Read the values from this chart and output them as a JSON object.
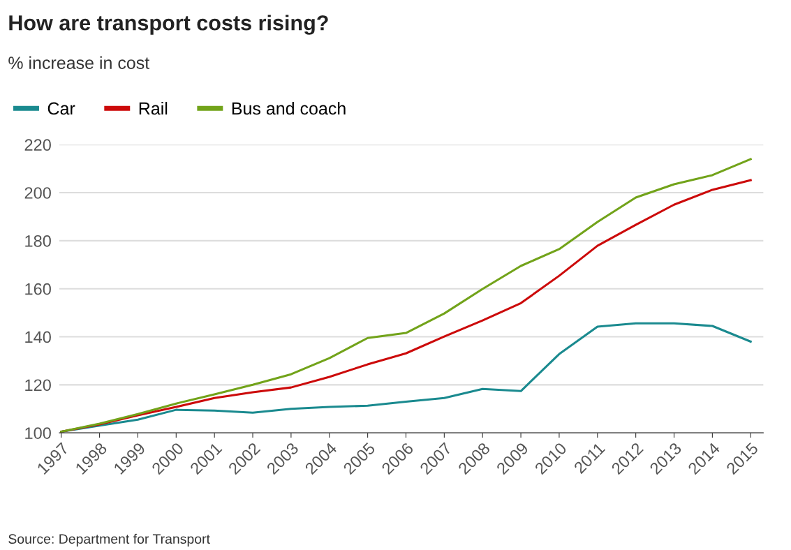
{
  "chart_data": {
    "type": "line",
    "title": "How are transport costs rising?",
    "subtitle": "% increase in cost",
    "categories": [
      "1997",
      "1998",
      "1999",
      "2000",
      "2001",
      "2002",
      "2003",
      "2004",
      "2005",
      "2006",
      "2007",
      "2008",
      "2009",
      "2010",
      "2011",
      "2012",
      "2013",
      "2014",
      "2015"
    ],
    "series": [
      {
        "name": "Car",
        "color": "#1a8a8f",
        "values": [
          100.5,
          103,
          105.5,
          109.6,
          109.3,
          108.4,
          110,
          110.8,
          111.3,
          113,
          114.5,
          118.3,
          117.4,
          132.8,
          144.2,
          145.6,
          145.6,
          144.5,
          138
        ]
      },
      {
        "name": "Rail",
        "color": "#cc0a0a",
        "values": [
          100.5,
          103.5,
          107.3,
          110.8,
          114.5,
          116.9,
          118.9,
          123.3,
          128.5,
          133.1,
          140.1,
          146.8,
          154,
          165.4,
          177.9,
          186.6,
          195,
          201.2,
          205.2
        ]
      },
      {
        "name": "Bus and coach",
        "color": "#72a31a",
        "values": [
          100.5,
          103.8,
          107.8,
          112.2,
          116,
          120,
          124.4,
          131.1,
          139.5,
          141.6,
          149.7,
          159.9,
          169.5,
          176.5,
          187.8,
          198,
          203.5,
          207.3,
          214
        ]
      }
    ],
    "ylim": [
      100,
      220
    ],
    "yticks": [
      100,
      120,
      140,
      160,
      180,
      200,
      220
    ],
    "grid": "y",
    "legend": "top left",
    "marker": "none",
    "line_style": "solid",
    "annotations": [
      "Source: Department for Transport"
    ]
  }
}
